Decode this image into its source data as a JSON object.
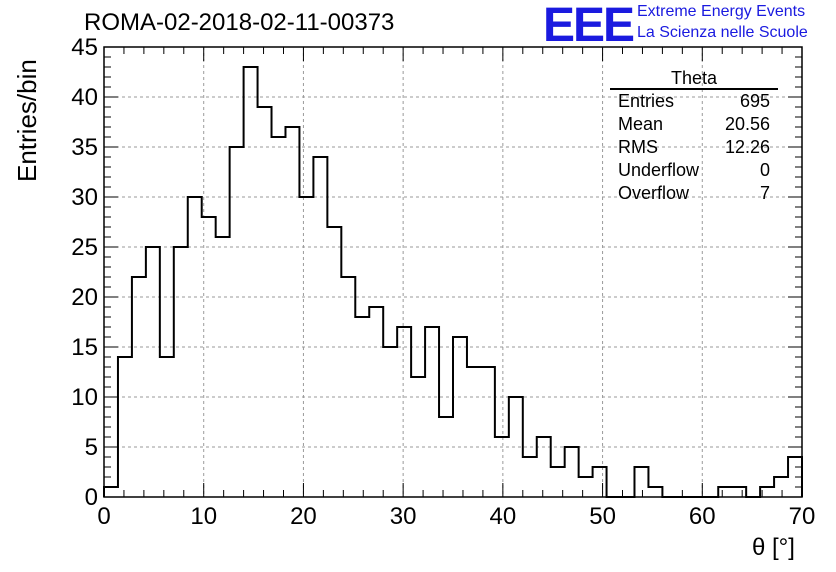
{
  "chart_data": {
    "type": "bar",
    "title": "ROMA-02-2018-02-11-00373",
    "xlabel": "θ [°]",
    "ylabel": "Entries/bin",
    "xlim": [
      0,
      70
    ],
    "ylim": [
      0,
      45
    ],
    "bin_width": 1.4,
    "x_ticks": [
      "0",
      "10",
      "20",
      "30",
      "40",
      "50",
      "60",
      "70"
    ],
    "y_ticks": [
      "0",
      "5",
      "10",
      "15",
      "20",
      "25",
      "30",
      "35",
      "40",
      "45"
    ],
    "grid": true,
    "legend": "none",
    "values": [
      1,
      14,
      22,
      25,
      14,
      25,
      30,
      28,
      26,
      35,
      43,
      39,
      36,
      37,
      30,
      34,
      27,
      22,
      18,
      19,
      15,
      17,
      12,
      17,
      8,
      16,
      13,
      13,
      6,
      10,
      4,
      6,
      3,
      5,
      2,
      3,
      0,
      0,
      3,
      1,
      0,
      0,
      0,
      0,
      1,
      1,
      0,
      1,
      2,
      4
    ],
    "color": "#000000"
  },
  "logo": {
    "letters": "EEE",
    "line1": "Extreme Energy Events",
    "line2": "La Scienza nelle Scuole",
    "color": "#1a1adf"
  },
  "stats": {
    "name": "Theta",
    "rows": [
      {
        "label": "Entries",
        "value": "695"
      },
      {
        "label": "Mean",
        "value": "20.56"
      },
      {
        "label": "RMS",
        "value": "12.26"
      },
      {
        "label": "Underflow",
        "value": "0"
      },
      {
        "label": "Overflow",
        "value": "7"
      }
    ]
  }
}
